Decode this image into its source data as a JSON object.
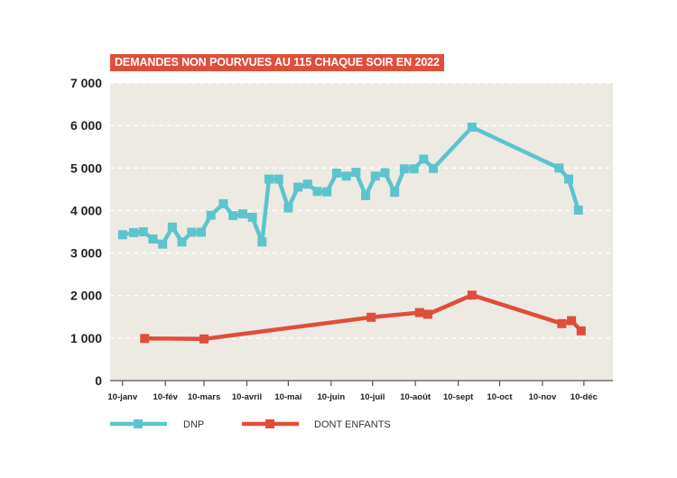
{
  "colors": {
    "dnp": "#5cc5cb",
    "enfants": "#e04e39",
    "plot_bg": "#ede9e3",
    "title_bg": "#e04e39",
    "title_text": "#ffffff",
    "grid": "#ffffff"
  },
  "chart_data": {
    "type": "line",
    "title": "DEMANDES NON POURVUES AU 115 CHAQUE SOIR EN 2022",
    "xlabel": "",
    "ylabel": "",
    "xlim": [
      "2022-01-01",
      "2022-12-31"
    ],
    "ylim": [
      0,
      7000
    ],
    "grid": true,
    "legend_position": "bottom",
    "x_tick_labels": [
      {
        "date": "2022-01-10",
        "label": "10-janv"
      },
      {
        "date": "2022-02-10",
        "label": "10-fév"
      },
      {
        "date": "2022-03-10",
        "label": "10-mars"
      },
      {
        "date": "2022-04-10",
        "label": "10-avril"
      },
      {
        "date": "2022-05-10",
        "label": "10-mai"
      },
      {
        "date": "2022-06-10",
        "label": "10-juin"
      },
      {
        "date": "2022-07-10",
        "label": "10-juil"
      },
      {
        "date": "2022-08-10",
        "label": "10-août"
      },
      {
        "date": "2022-09-10",
        "label": "10-sept"
      },
      {
        "date": "2022-10-10",
        "label": "10-oct"
      },
      {
        "date": "2022-11-10",
        "label": "10-nov"
      },
      {
        "date": "2022-12-10",
        "label": "10-déc"
      }
    ],
    "y_ticks": [
      {
        "value": 0,
        "label": "0"
      },
      {
        "value": 1000,
        "label": "1 000"
      },
      {
        "value": 2000,
        "label": "2 000"
      },
      {
        "value": 3000,
        "label": "3 000"
      },
      {
        "value": 4000,
        "label": "4 000"
      },
      {
        "value": 5000,
        "label": "5 000"
      },
      {
        "value": 6000,
        "label": "6 000"
      },
      {
        "value": 7000,
        "label": "7 000"
      }
    ],
    "series": [
      {
        "name": "DNP",
        "key": "dnp",
        "points": [
          {
            "x": "2022-01-10",
            "y": 3430
          },
          {
            "x": "2022-01-18",
            "y": 3480
          },
          {
            "x": "2022-01-25",
            "y": 3500
          },
          {
            "x": "2022-02-01",
            "y": 3330
          },
          {
            "x": "2022-02-08",
            "y": 3210
          },
          {
            "x": "2022-02-15",
            "y": 3610
          },
          {
            "x": "2022-02-22",
            "y": 3260
          },
          {
            "x": "2022-03-01",
            "y": 3490
          },
          {
            "x": "2022-03-08",
            "y": 3490
          },
          {
            "x": "2022-03-15",
            "y": 3890
          },
          {
            "x": "2022-03-24",
            "y": 4160
          },
          {
            "x": "2022-03-31",
            "y": 3880
          },
          {
            "x": "2022-04-07",
            "y": 3920
          },
          {
            "x": "2022-04-14",
            "y": 3840
          },
          {
            "x": "2022-04-21",
            "y": 3260
          },
          {
            "x": "2022-04-26",
            "y": 4740
          },
          {
            "x": "2022-05-03",
            "y": 4740
          },
          {
            "x": "2022-05-10",
            "y": 4060
          },
          {
            "x": "2022-05-17",
            "y": 4550
          },
          {
            "x": "2022-05-24",
            "y": 4620
          },
          {
            "x": "2022-05-31",
            "y": 4450
          },
          {
            "x": "2022-06-07",
            "y": 4440
          },
          {
            "x": "2022-06-14",
            "y": 4880
          },
          {
            "x": "2022-06-21",
            "y": 4810
          },
          {
            "x": "2022-06-28",
            "y": 4900
          },
          {
            "x": "2022-07-05",
            "y": 4350
          },
          {
            "x": "2022-07-12",
            "y": 4810
          },
          {
            "x": "2022-07-19",
            "y": 4890
          },
          {
            "x": "2022-07-26",
            "y": 4430
          },
          {
            "x": "2022-08-02",
            "y": 4980
          },
          {
            "x": "2022-08-09",
            "y": 4980
          },
          {
            "x": "2022-08-16",
            "y": 5210
          },
          {
            "x": "2022-08-23",
            "y": 4990
          },
          {
            "x": "2022-09-20",
            "y": 5960
          },
          {
            "x": "2022-11-22",
            "y": 5000
          },
          {
            "x": "2022-11-29",
            "y": 4740
          },
          {
            "x": "2022-12-06",
            "y": 4010
          }
        ]
      },
      {
        "name": "DONT ENFANTS",
        "key": "enfants",
        "points": [
          {
            "x": "2022-01-26",
            "y": 990
          },
          {
            "x": "2022-03-10",
            "y": 980
          },
          {
            "x": "2022-07-09",
            "y": 1490
          },
          {
            "x": "2022-08-13",
            "y": 1600
          },
          {
            "x": "2022-08-19",
            "y": 1560
          },
          {
            "x": "2022-09-20",
            "y": 2010
          },
          {
            "x": "2022-11-24",
            "y": 1340
          },
          {
            "x": "2022-12-01",
            "y": 1410
          },
          {
            "x": "2022-12-08",
            "y": 1170
          }
        ]
      }
    ]
  }
}
